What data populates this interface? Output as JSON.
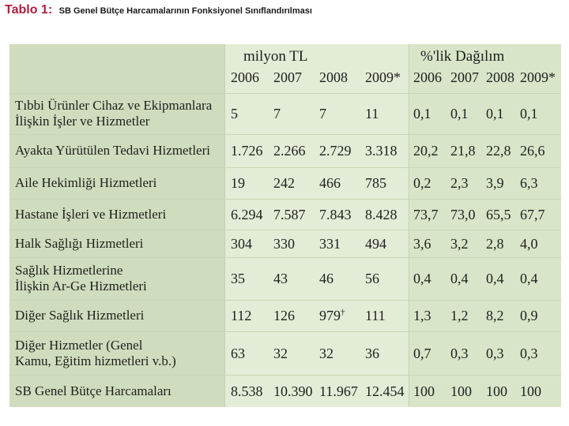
{
  "caption": {
    "label": "Tablo 1:",
    "title": "SB Genel Bütçe Harcamalarının Fonksiyonel Sınıflandırılması"
  },
  "table": {
    "group_headers": {
      "absolute": "milyon TL",
      "percent": "%'lik Dağılım"
    },
    "years": [
      "2006",
      "2007",
      "2008",
      "2009*",
      "2006",
      "2007",
      "2008",
      "2009*"
    ],
    "rows": [
      {
        "label_lines": [
          "Tıbbi Ürünler Cihaz ve Ekipmanlara",
          "İlişkin İşler ve Hizmetler"
        ],
        "values": [
          "5",
          "7",
          "7",
          "11",
          "0,1",
          "0,1",
          "0,1",
          "0,1"
        ]
      },
      {
        "label_lines": [
          "Ayakta Yürütülen Tedavi Hizmetleri"
        ],
        "values": [
          "1.726",
          "2.266",
          "2.729",
          "3.318",
          "20,2",
          "21,8",
          "22,8",
          "26,6"
        ]
      },
      {
        "label_lines": [
          "Aile Hekimliği Hizmetleri"
        ],
        "values": [
          "19",
          "242",
          "466",
          "785",
          "0,2",
          "2,3",
          "3,9",
          "6,3"
        ]
      },
      {
        "label_lines": [
          "Hastane İşleri ve Hizmetleri"
        ],
        "values": [
          "6.294",
          "7.587",
          "7.843",
          "8.428",
          "73,7",
          "73,0",
          "65,5",
          "67,7"
        ]
      },
      {
        "label_lines": [
          "Halk Sağlığı Hizmetleri"
        ],
        "values": [
          "304",
          "330",
          "331",
          "494",
          "3,6",
          "3,2",
          "2,8",
          "4,0"
        ]
      },
      {
        "label_lines": [
          "Sağlık Hizmetlerine",
          "İlişkin Ar-Ge Hizmetleri"
        ],
        "values": [
          "35",
          "43",
          "46",
          "56",
          "0,4",
          "0,4",
          "0,4",
          "0,4"
        ]
      },
      {
        "label_lines": [
          "Diğer Sağlık Hizmetleri"
        ],
        "values": [
          "112",
          "126",
          "979",
          "111",
          "1,3",
          "1,2",
          "8,2",
          "0,9"
        ],
        "marks": [
          "",
          "",
          "†",
          "",
          "",
          "",
          "",
          ""
        ]
      },
      {
        "label_lines": [
          "Diğer Hizmetler (Genel",
          "Kamu, Eğitim hizmetleri v.b.)"
        ],
        "values": [
          "63",
          "32",
          "32",
          "36",
          "0,7",
          "0,3",
          "0,3",
          "0,3"
        ]
      },
      {
        "label_lines": [
          "SB Genel Bütçe Harcamaları"
        ],
        "values": [
          "8.538",
          "10.390",
          "11.967",
          "12.454",
          "100",
          "100",
          "100",
          "100"
        ]
      }
    ]
  }
}
